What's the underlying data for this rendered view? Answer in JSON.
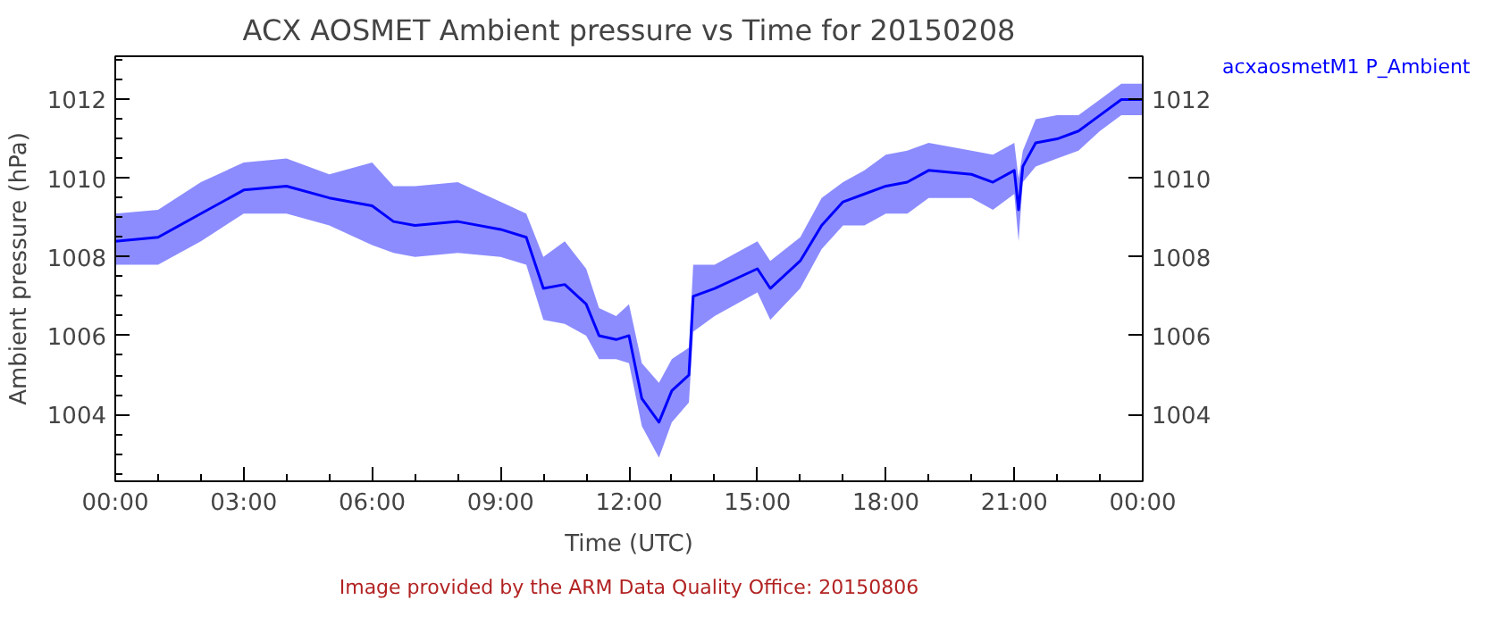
{
  "chart_data": {
    "type": "line",
    "title": "ACX AOSMET Ambient pressure vs Time for 20150208",
    "xlabel": "Time (UTC)",
    "ylabel": "Ambient pressure (hPa)",
    "x": [
      0,
      1,
      2,
      3,
      4,
      5,
      6,
      6.5,
      7,
      8,
      9,
      9.6,
      10,
      10.5,
      11,
      11.3,
      11.7,
      12,
      12.3,
      12.7,
      13,
      13.4,
      13.5,
      14,
      15,
      15.3,
      16,
      16.5,
      17,
      17.5,
      18,
      18.5,
      19,
      20,
      20.5,
      21,
      21.1,
      21.2,
      21.5,
      22,
      22.5,
      23,
      23.5,
      24
    ],
    "series": [
      {
        "name": "acxaosmetM1 P_Ambient",
        "color": "#0000ff",
        "values": [
          1008.4,
          1008.5,
          1009.1,
          1009.7,
          1009.8,
          1009.5,
          1009.3,
          1008.9,
          1008.8,
          1008.9,
          1008.7,
          1008.5,
          1007.2,
          1007.3,
          1006.8,
          1006.0,
          1005.9,
          1006.0,
          1004.4,
          1003.8,
          1004.6,
          1005.0,
          1007.0,
          1007.2,
          1007.7,
          1007.2,
          1007.9,
          1008.8,
          1009.4,
          1009.6,
          1009.8,
          1009.9,
          1010.2,
          1010.1,
          1009.9,
          1010.2,
          1009.2,
          1010.3,
          1010.9,
          1011.0,
          1011.2,
          1011.6,
          1012.0,
          1012.0
        ],
        "lower": [
          1007.8,
          1007.8,
          1008.4,
          1009.1,
          1009.1,
          1008.8,
          1008.3,
          1008.1,
          1008.0,
          1008.1,
          1008.0,
          1007.8,
          1006.4,
          1006.3,
          1006.0,
          1005.4,
          1005.4,
          1005.3,
          1003.7,
          1002.9,
          1003.8,
          1004.3,
          1006.1,
          1006.5,
          1007.1,
          1006.4,
          1007.2,
          1008.2,
          1008.8,
          1008.8,
          1009.1,
          1009.1,
          1009.5,
          1009.5,
          1009.2,
          1009.6,
          1008.4,
          1009.9,
          1010.3,
          1010.5,
          1010.7,
          1011.2,
          1011.6,
          1011.6
        ],
        "upper": [
          1009.1,
          1009.2,
          1009.9,
          1010.4,
          1010.5,
          1010.1,
          1010.4,
          1009.8,
          1009.8,
          1009.9,
          1009.4,
          1009.1,
          1008.0,
          1008.4,
          1007.7,
          1006.7,
          1006.5,
          1006.8,
          1005.3,
          1004.8,
          1005.4,
          1005.7,
          1007.8,
          1007.8,
          1008.4,
          1007.9,
          1008.5,
          1009.5,
          1009.9,
          1010.2,
          1010.6,
          1010.7,
          1010.9,
          1010.7,
          1010.6,
          1010.9,
          1010.0,
          1010.7,
          1011.5,
          1011.6,
          1011.6,
          1012.0,
          1012.4,
          1012.4
        ]
      }
    ],
    "xlim": [
      0,
      24
    ],
    "xticks": [
      {
        "value": 0,
        "label": "00:00"
      },
      {
        "value": 1,
        "label": null
      },
      {
        "value": 2,
        "label": null
      },
      {
        "value": 3,
        "label": "03:00"
      },
      {
        "value": 4,
        "label": null
      },
      {
        "value": 5,
        "label": null
      },
      {
        "value": 6,
        "label": "06:00"
      },
      {
        "value": 7,
        "label": null
      },
      {
        "value": 8,
        "label": null
      },
      {
        "value": 9,
        "label": "09:00"
      },
      {
        "value": 10,
        "label": null
      },
      {
        "value": 11,
        "label": null
      },
      {
        "value": 12,
        "label": "12:00"
      },
      {
        "value": 13,
        "label": null
      },
      {
        "value": 14,
        "label": null
      },
      {
        "value": 15,
        "label": "15:00"
      },
      {
        "value": 16,
        "label": null
      },
      {
        "value": 17,
        "label": null
      },
      {
        "value": 18,
        "label": "18:00"
      },
      {
        "value": 19,
        "label": null
      },
      {
        "value": 20,
        "label": null
      },
      {
        "value": 21,
        "label": "21:00"
      },
      {
        "value": 22,
        "label": null
      },
      {
        "value": 23,
        "label": null
      },
      {
        "value": 24,
        "label": "00:00"
      }
    ],
    "ylim": [
      1002.3,
      1013.1
    ],
    "yticks": [
      {
        "value": 1002.5,
        "label": null
      },
      {
        "value": 1003,
        "label": null
      },
      {
        "value": 1003.5,
        "label": null
      },
      1004,
      {
        "value": 1004.5,
        "label": null
      },
      {
        "value": 1005,
        "label": null
      },
      {
        "value": 1005.5,
        "label": null
      },
      1006,
      {
        "value": 1006.5,
        "label": null
      },
      {
        "value": 1007,
        "label": null
      },
      {
        "value": 1007.5,
        "label": null
      },
      1008,
      {
        "value": 1008.5,
        "label": null
      },
      {
        "value": 1009,
        "label": null
      },
      {
        "value": 1009.5,
        "label": null
      },
      1010,
      {
        "value": 1010.5,
        "label": null
      },
      {
        "value": 1011,
        "label": null
      },
      {
        "value": 1011.5,
        "label": null
      },
      1012,
      {
        "value": 1012.5,
        "label": null
      },
      {
        "value": 1013,
        "label": null
      }
    ],
    "y2lim": [
      1002.3,
      1013.1
    ],
    "y2ticks": [
      1004,
      1006,
      1008,
      1010,
      1012
    ],
    "grid": false,
    "marker": "none",
    "line_style": "solid",
    "annotations": [
      "Image provided by the ARM Data Quality Office: 20150806"
    ]
  }
}
